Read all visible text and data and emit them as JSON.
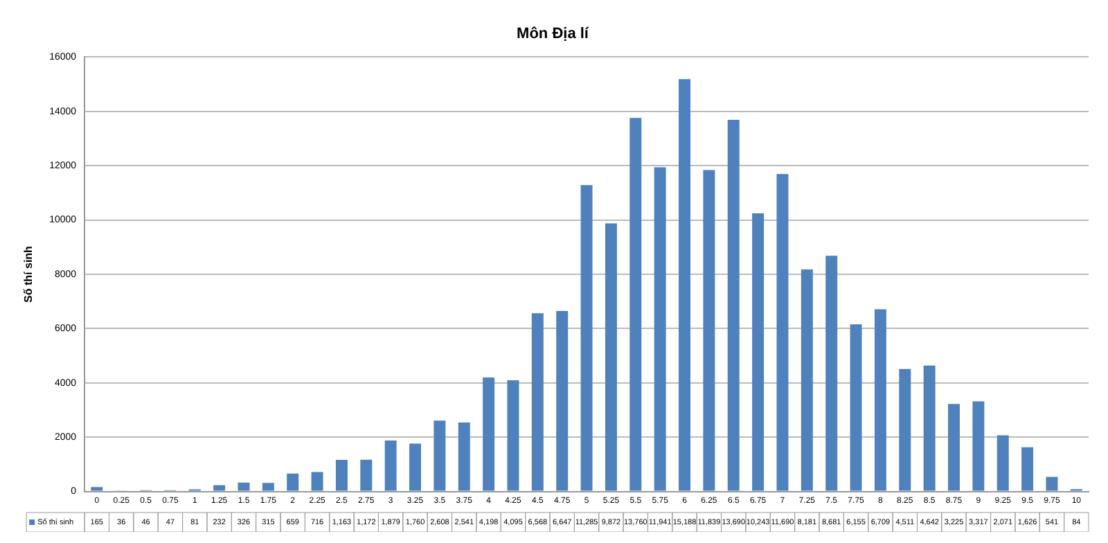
{
  "chart_data": {
    "type": "bar",
    "title": "Môn Địa lí",
    "ylabel": "Số thí sinh",
    "categories": [
      "0",
      "0.25",
      "0.5",
      "0.75",
      "1",
      "1.25",
      "1.5",
      "1.75",
      "2",
      "2.25",
      "2.5",
      "2.75",
      "3",
      "3.25",
      "3.5",
      "3.75",
      "4",
      "4.25",
      "4.5",
      "4.75",
      "5",
      "5.25",
      "5.5",
      "5.75",
      "6",
      "6.25",
      "6.5",
      "6.75",
      "7",
      "7.25",
      "7.5",
      "7.75",
      "8",
      "8.25",
      "8.5",
      "8.75",
      "9",
      "9.25",
      "9.5",
      "9.75",
      "10"
    ],
    "series": [
      {
        "name": "Số thí sinh",
        "color": "#4f81bd",
        "values": [
          165,
          36,
          46,
          47,
          81,
          232,
          326,
          315,
          659,
          716,
          1163,
          1172,
          1879,
          1760,
          2608,
          2541,
          4198,
          4095,
          6568,
          6647,
          11285,
          9872,
          13760,
          11941,
          15188,
          11839,
          13690,
          10243,
          11690,
          8181,
          8681,
          6155,
          6709,
          4511,
          4642,
          3225,
          3317,
          2071,
          1626,
          541,
          84
        ],
        "value_labels": [
          "165",
          "36",
          "46",
          "47",
          "81",
          "232",
          "326",
          "315",
          "659",
          "716",
          "1,163",
          "1,172",
          "1,879",
          "1,760",
          "2,608",
          "2,541",
          "4,198",
          "4,095",
          "6,568",
          "6,647",
          "11,285",
          "9,872",
          "13,760",
          "11,941",
          "15,188",
          "11,839",
          "13,690",
          "10,243",
          "11,690",
          "8,181",
          "8,681",
          "6,155",
          "6,709",
          "4,511",
          "4,642",
          "3,225",
          "3,317",
          "2,071",
          "1,626",
          "541",
          "84"
        ]
      }
    ],
    "ylim": [
      0,
      16000
    ],
    "yticks": [
      0,
      2000,
      4000,
      6000,
      8000,
      10000,
      12000,
      14000,
      16000
    ],
    "grid": "y",
    "legend": "bottom"
  }
}
